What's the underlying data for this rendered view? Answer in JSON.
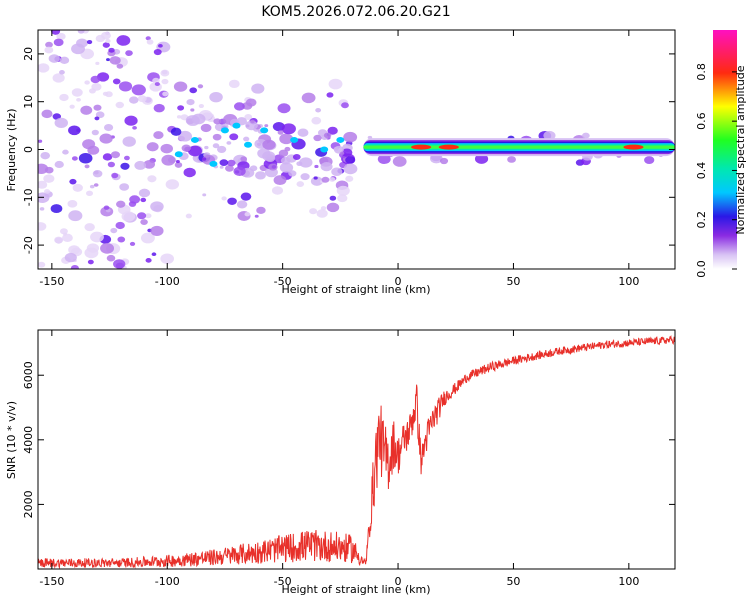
{
  "title": "KOM5.2026.072.06.20.G21",
  "chart_data": [
    {
      "type": "heatmap",
      "name": "spectrogram",
      "title": "KOM5.2026.072.06.20.G21",
      "xlabel": "Height of straight line (km)",
      "ylabel": "Frequency (Hz)",
      "xlim": [
        -156,
        120
      ],
      "ylim": [
        -25,
        25
      ],
      "xticks": [
        -150,
        -100,
        -50,
        0,
        50,
        100
      ],
      "yticks": [
        -20,
        -10,
        0,
        10,
        20
      ],
      "grid": false,
      "colorbar": {
        "label": "Normalized spectral amplitude",
        "range": [
          0.0,
          0.97
        ],
        "ticks": [
          0.0,
          0.2,
          0.4,
          0.6,
          0.8
        ],
        "tick_labels": [
          "0.0",
          "0.2",
          "0.4",
          "0.6",
          "0.8"
        ],
        "colormap": "rainbow (white-violet-blue-cyan-green-yellow-red-magenta)"
      },
      "carrier_track": {
        "description": "strong narrow line near 0 Hz from about -15 km to the end",
        "x_range": [
          -15,
          120
        ],
        "center_frequency": 0.5,
        "peaks": [
          {
            "x": 22,
            "amplitude": 0.9
          },
          {
            "x": 102,
            "amplitude": 0.85
          },
          {
            "x": 10,
            "amplitude": 0.8
          }
        ]
      }
    },
    {
      "type": "line",
      "name": "snr",
      "xlabel": "Height of straight line (km)",
      "ylabel": "SNR (10 * v/v)",
      "xlim": [
        -156,
        120
      ],
      "ylim": [
        0,
        7400
      ],
      "xticks": [
        -150,
        -100,
        -50,
        0,
        50,
        100
      ],
      "yticks": [
        2000,
        4000,
        6000
      ],
      "grid": false,
      "series": [
        {
          "name": "SNR",
          "color": "#e8302a",
          "x": [
            -156,
            -120,
            -100,
            -80,
            -60,
            -40,
            -30,
            -20,
            -16,
            -14,
            -12,
            -10,
            -8,
            -6,
            -4,
            -2,
            0,
            2,
            5,
            8,
            10,
            12,
            15,
            18,
            20,
            25,
            30,
            40,
            50,
            60,
            70,
            80,
            90,
            100,
            110,
            120
          ],
          "y": [
            150,
            150,
            200,
            350,
            550,
            750,
            700,
            600,
            300,
            150,
            1600,
            3200,
            4200,
            3500,
            3300,
            3900,
            3500,
            3900,
            4300,
            5200,
            3300,
            4000,
            4600,
            5000,
            5300,
            5600,
            5950,
            6250,
            6450,
            6600,
            6750,
            6850,
            6950,
            7000,
            7050,
            7100
          ],
          "noise_amplitude": [
            130,
            130,
            170,
            230,
            330,
            450,
            450,
            400,
            200,
            100,
            500,
            1200,
            1100,
            1100,
            900,
            800,
            600,
            600,
            500,
            700,
            400,
            500,
            450,
            350,
            250,
            180,
            150,
            150,
            130,
            130,
            120,
            120,
            120,
            120,
            120,
            120
          ]
        }
      ]
    }
  ]
}
